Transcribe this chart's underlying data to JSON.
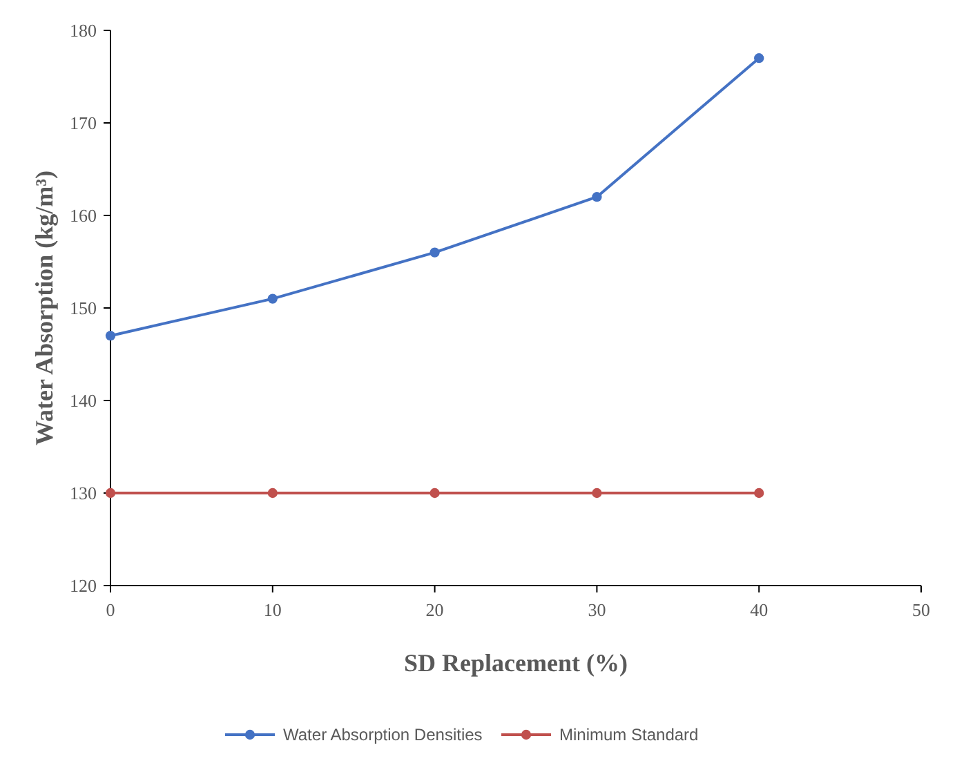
{
  "chart_data": {
    "type": "line",
    "xlabel": "SD Replacement (%)",
    "ylabel": "Water Absorption (kg/m³)",
    "x": [
      0,
      10,
      20,
      30,
      40
    ],
    "xlim": [
      0,
      50
    ],
    "xticks": [
      0,
      10,
      20,
      30,
      40,
      50
    ],
    "ylim": [
      120,
      180
    ],
    "yticks": [
      120,
      130,
      140,
      150,
      160,
      170,
      180
    ],
    "series": [
      {
        "name": "Water Absorption Densities",
        "color": "#4472c4",
        "values": [
          147,
          151,
          156,
          162,
          177
        ]
      },
      {
        "name": "Minimum Standard",
        "color": "#c0504d",
        "values": [
          130,
          130,
          130,
          130,
          130
        ]
      }
    ],
    "marker": "circle",
    "grid": false,
    "legend": "bottom"
  }
}
